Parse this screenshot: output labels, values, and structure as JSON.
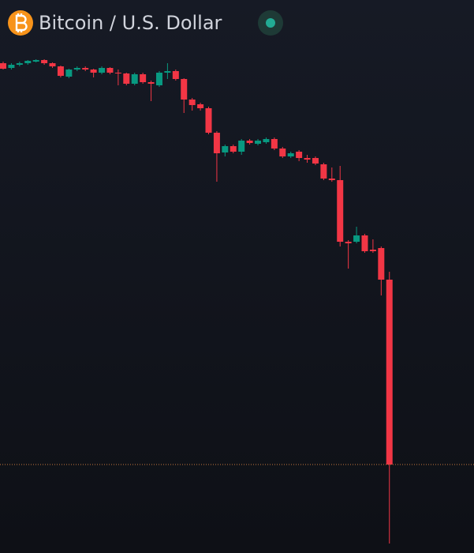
{
  "chart_data": {
    "type": "candlestick",
    "title": "Bitcoin / U.S. Dollar",
    "up_color": "#089981",
    "down_color": "#f23645",
    "price_line_color": "#c8783c",
    "ylim": [
      0,
      700
    ],
    "open": [
      620,
      614,
      618,
      620,
      622,
      624,
      620,
      616,
      603,
      612,
      614,
      612,
      608,
      614,
      608,
      607,
      594,
      606,
      596,
      592,
      608,
      610,
      600,
      574,
      568,
      563,
      532,
      507,
      515,
      508,
      522,
      518,
      520,
      524,
      512,
      502,
      508,
      500,
      500,
      492,
      474,
      472,
      394,
      394,
      402,
      384,
      386,
      346
    ],
    "high": [
      622,
      620,
      622,
      624,
      625,
      625,
      621,
      617,
      613,
      616,
      616,
      613,
      616,
      615,
      612,
      608,
      608,
      608,
      598,
      610,
      620,
      612,
      601,
      576,
      570,
      565,
      534,
      517,
      517,
      524,
      524,
      524,
      526,
      526,
      514,
      508,
      510,
      504,
      502,
      494,
      488,
      490,
      396,
      413,
      404,
      397,
      388,
      356
    ],
    "low": [
      612,
      612,
      616,
      618,
      621,
      618,
      614,
      602,
      601,
      610,
      610,
      602,
      606,
      606,
      592,
      592,
      592,
      594,
      572,
      590,
      600,
      598,
      557,
      560,
      560,
      530,
      470,
      502,
      506,
      504,
      517,
      516,
      518,
      510,
      500,
      500,
      496,
      494,
      491,
      472,
      470,
      388,
      360,
      392,
      380,
      380,
      326,
      12
    ],
    "close": [
      613,
      618,
      620,
      623,
      624,
      620,
      616,
      604,
      612,
      614,
      612,
      608,
      614,
      608,
      607,
      594,
      606,
      596,
      594,
      608,
      610,
      600,
      574,
      567,
      563,
      532,
      506,
      515,
      508,
      522,
      519,
      522,
      524,
      512,
      502,
      506,
      500,
      498,
      493,
      474,
      472,
      394,
      392,
      402,
      382,
      382,
      346,
      112
    ]
  }
}
